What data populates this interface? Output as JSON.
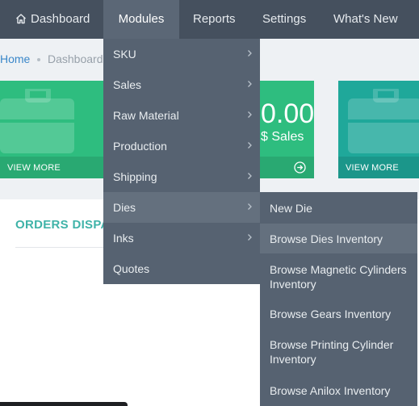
{
  "nav": {
    "dashboard": "Dashboard",
    "modules": "Modules",
    "reports": "Reports",
    "settings": "Settings",
    "whats_new": "What's New"
  },
  "breadcrumb": {
    "home": "Home",
    "current": "Dashboard"
  },
  "tiles": [
    {
      "footer": "VIEW MORE",
      "color": "#2ebd7f"
    },
    {
      "value": "0.00",
      "label": "$ Sales",
      "color": "#2ebd7f"
    },
    {
      "footer": "VIEW MORE",
      "color": "#1fa89a"
    }
  ],
  "orders": {
    "title": "ORDERS DISPA"
  },
  "modules_menu": {
    "items": [
      {
        "label": "SKU",
        "icon": "chevron-right-icon"
      },
      {
        "label": "Sales",
        "icon": "chevron-right-icon"
      },
      {
        "label": "Raw Material",
        "icon": "chevron-right-icon"
      },
      {
        "label": "Production",
        "icon": "chevron-right-icon"
      },
      {
        "label": "Shipping",
        "icon": "chevron-right-icon"
      },
      {
        "label": "Dies",
        "icon": "chevron-right-icon",
        "active": true
      },
      {
        "label": "Inks",
        "icon": "chevron-right-icon"
      },
      {
        "label": "Quotes"
      }
    ]
  },
  "dies_submenu": {
    "items": [
      {
        "label": "New Die"
      },
      {
        "label": "Browse Dies Inventory",
        "hovered": true
      },
      {
        "label": "Browse Magnetic Cylinders Inventory"
      },
      {
        "label": "Browse Gears Inventory"
      },
      {
        "label": "Browse Printing Cylinder Inventory"
      },
      {
        "label": "Browse Anilox Inventory"
      }
    ]
  },
  "colors": {
    "nav_bg": "#45505e",
    "menu_bg": "#566271",
    "menu_active": "#64707e",
    "accent_teal": "#3fb3a8",
    "link_blue": "#3a87c9"
  }
}
